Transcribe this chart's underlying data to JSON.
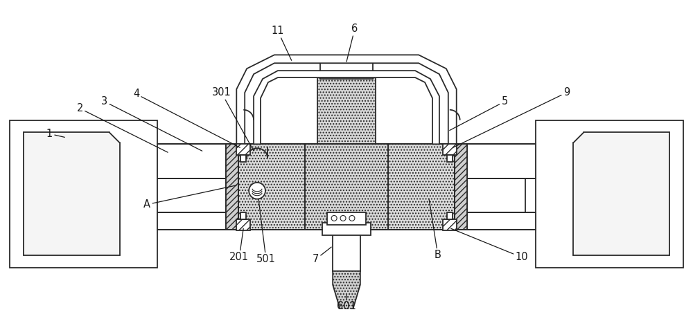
{
  "bg_color": "#ffffff",
  "lc": "#2a2a2a",
  "lw": 1.3,
  "fill_dot": "#d8d8d8",
  "fill_hatch": "#e0e0e0",
  "fill_white": "#ffffff",
  "fill_gray": "#c0c0c0"
}
